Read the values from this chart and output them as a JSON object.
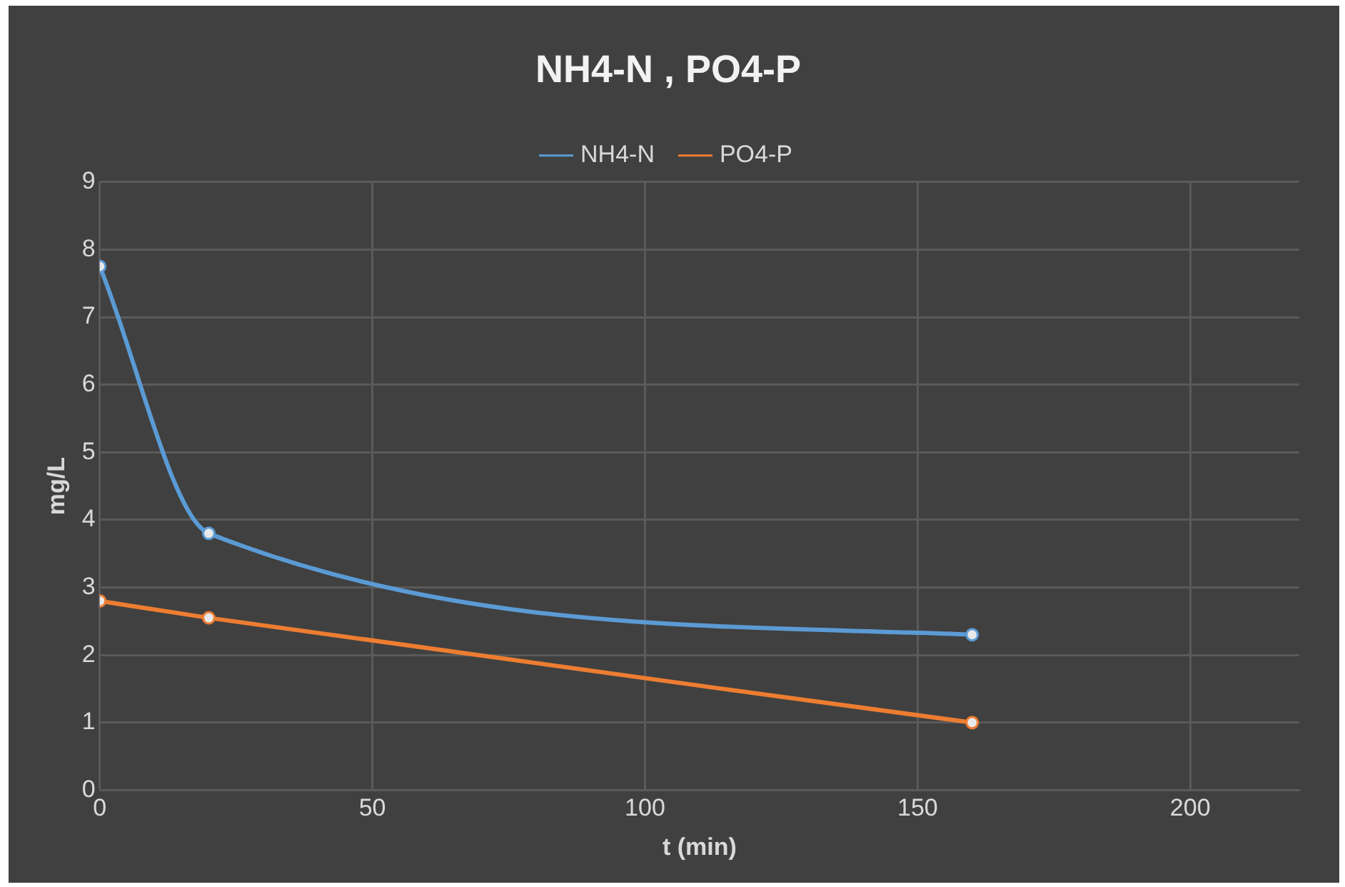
{
  "chart_data": {
    "type": "line",
    "title": "NH4-N , PO4-P",
    "xlabel": "t (min)",
    "ylabel": "mg/L",
    "x": [
      0,
      20,
      160
    ],
    "series": [
      {
        "name": "NH4-N",
        "color": "#5b9bd5",
        "values": [
          7.75,
          3.8,
          2.3
        ]
      },
      {
        "name": "PO4-P",
        "color": "#ed7d31",
        "values": [
          2.8,
          2.55,
          1.0
        ]
      }
    ],
    "xlim": [
      0,
      220
    ],
    "xticks": [
      0,
      50,
      100,
      150,
      200
    ],
    "ylim": [
      0,
      9
    ],
    "yticks": [
      0,
      1,
      2,
      3,
      4,
      5,
      6,
      7,
      8,
      9
    ],
    "grid": true,
    "legend": "top",
    "marker": "circle",
    "line_style": "solid"
  }
}
